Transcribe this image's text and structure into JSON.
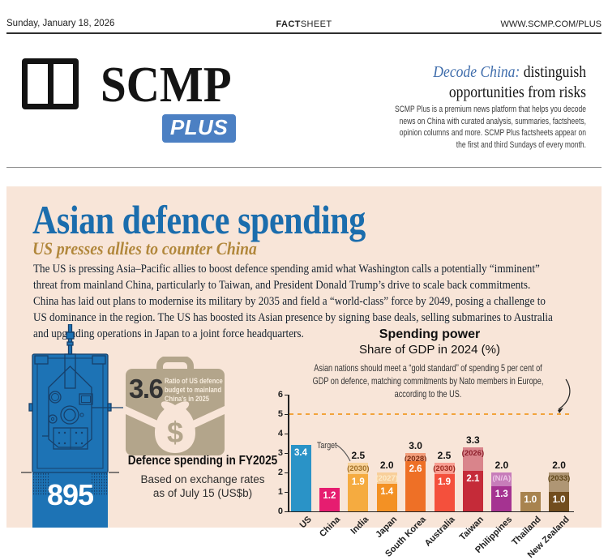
{
  "masthead": {
    "date": "Sunday, January 18, 2026",
    "center_bold": "FACT",
    "center_regular": "SHEET",
    "url": "WWW.SCMP.COM/PLUS"
  },
  "brand": {
    "name": "SCMP",
    "plus": "PLUS",
    "plus_bg": "#4c80c3",
    "tagline_lead": "Decode China:",
    "tagline_rest": " distinguish opportunities from risks",
    "description": "SCMP Plus is a premium news platform that helps you decode news on China with curated analysis, summaries, factsheets, opinion columns and more. SCMP Plus factsheets appear on the first and third Sundays of every month."
  },
  "article": {
    "title": "Asian defence spending",
    "subtitle": "US presses allies to counter China",
    "body": "The US is pressing Asia–Pacific allies to boost defence spending amid what Washington calls a potentially “imminent” threat from mainland China, particularly to Taiwan, and President Donald Trump’s drive to scale back commitments. China has laid out plans to modernise its military by 2035 and field a “world-class” force by 2049, posing a challenge to US dominance in the region. The US has boosted its Asian presence by signing base deals, selling submarines to Australia and upgrading operations in Japan to a joint force headquarters.",
    "title_color": "#1b6dad",
    "subtitle_color": "#b1873b",
    "panel_bg": "#f8e5d8"
  },
  "tank_figure": {
    "value": "895",
    "caption": "Defence spending in FY2025",
    "note_line1": "Based on exchange rates",
    "note_line2": "as of July 15 (US$b)",
    "tank_fill": "#1d73b5",
    "tank_stroke": "#17406b"
  },
  "ratio_figure": {
    "value": "3.6",
    "label": "Ratio of US defence budget to mainland China's in 2025",
    "case_color": "#b3a58b"
  },
  "chart_data": {
    "type": "bar",
    "title": "Spending power",
    "subtitle": "Share of GDP in 2024 (%)",
    "note": "Asian nations should meet a “gold standard” of spending 5 per cent of GDP on defence, matching commitments by Nato members in Europe, according to the US.",
    "ylim": [
      0,
      6
    ],
    "yticks": [
      0,
      1,
      2,
      3,
      4,
      5,
      6
    ],
    "gold_standard_line": 5,
    "target_annotation": "Target",
    "categories": [
      "US",
      "China",
      "India",
      "Japan",
      "South Korea",
      "Australia",
      "Taiwan",
      "Philippines",
      "Thailand",
      "New Zealand"
    ],
    "series": [
      {
        "name": "Share of GDP in 2024 (%)",
        "values": [
          3.4,
          1.2,
          1.9,
          1.4,
          2.6,
          1.9,
          2.1,
          1.3,
          1.0,
          1.0
        ]
      },
      {
        "name": "Target",
        "values": [
          null,
          null,
          2.5,
          2.0,
          3.0,
          2.5,
          3.3,
          2.0,
          null,
          2.0
        ]
      }
    ],
    "target_years": [
      null,
      null,
      "(2030)",
      "(2027)",
      "(2028)",
      "(2030)",
      "(2026)",
      "(N/A)",
      null,
      "(2033)"
    ],
    "colors": {
      "actual": [
        "#2a93c7",
        "#e61d70",
        "#f5ab40",
        "#f39124",
        "#ee7026",
        "#f4503c",
        "#c52b39",
        "#a53391",
        "#a8834f",
        "#714d1e"
      ],
      "target": [
        null,
        null,
        "#f9d399",
        "#f8cf9a",
        "#f29d7a",
        "#f89e92",
        "#d9848b",
        "#c77dba",
        null,
        "#af9674"
      ],
      "year_text": [
        null,
        null,
        "#a06f28",
        "#fcebc9",
        "#7c2d12",
        "#9c2a1e",
        "#8c1f2a",
        "#ecc6e6",
        null,
        "#5f4619"
      ],
      "reference": "#f2a33c"
    }
  }
}
